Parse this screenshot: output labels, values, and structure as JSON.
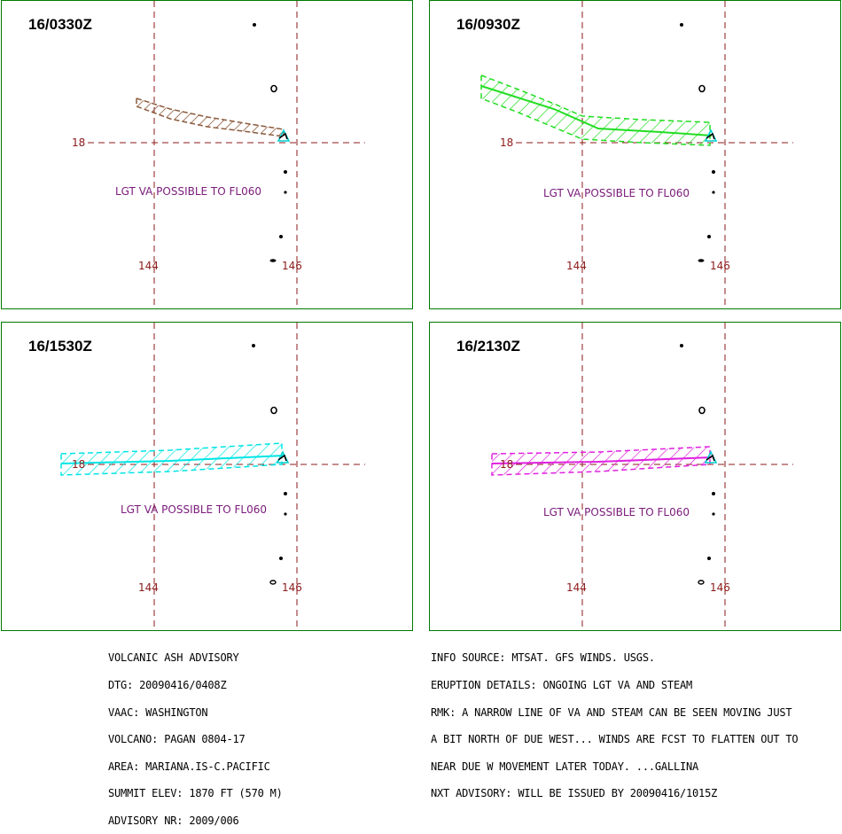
{
  "panels": [
    {
      "title": "16/0330Z",
      "color": "#8b5a3c",
      "note": "LGT VA POSSIBLE TO FL060",
      "lon_labels": [
        "144",
        "146"
      ],
      "lat_label": "18"
    },
    {
      "title": "16/0930Z",
      "color": "#22dd22",
      "note": "LGT VA POSSIBLE TO FL060",
      "lon_labels": [
        "144",
        "146"
      ],
      "lat_label": "18"
    },
    {
      "title": "16/1530Z",
      "color": "#00e5e5",
      "note": "LGT VA POSSIBLE TO FL060",
      "lon_labels": [
        "144",
        "146"
      ],
      "lat_label": "18"
    },
    {
      "title": "16/2130Z",
      "color": "#e020e0",
      "note": "LGT VA POSSIBLE TO FL060",
      "lon_labels": [
        "144",
        "146"
      ],
      "lat_label": "18"
    }
  ],
  "advisory_left": [
    "VOLCANIC ASH ADVISORY",
    "DTG: 20090416/0408Z",
    "VAAC: WASHINGTON",
    "VOLCANO: PAGAN 0804-17",
    "AREA: MARIANA.IS-C.PACIFIC",
    "SUMMIT ELEV: 1870 FT (570 M)",
    "ADVISORY NR: 2009/006"
  ],
  "advisory_right": [
    "INFO SOURCE: MTSAT. GFS WINDS. USGS.",
    "ERUPTION DETAILS: ONGOING LGT VA AND STEAM",
    "RMK: A NARROW LINE OF VA AND STEAM CAN BE SEEN MOVING JUST",
    "A BIT NORTH OF DUE WEST... WINDS ARE FCST TO FLATTEN OUT TO",
    "NEAR DUE W MOVEMENT LATER TODAY. ...GALLINA",
    "NXT ADVISORY: WILL BE ISSUED BY 20090416/1015Z"
  ]
}
